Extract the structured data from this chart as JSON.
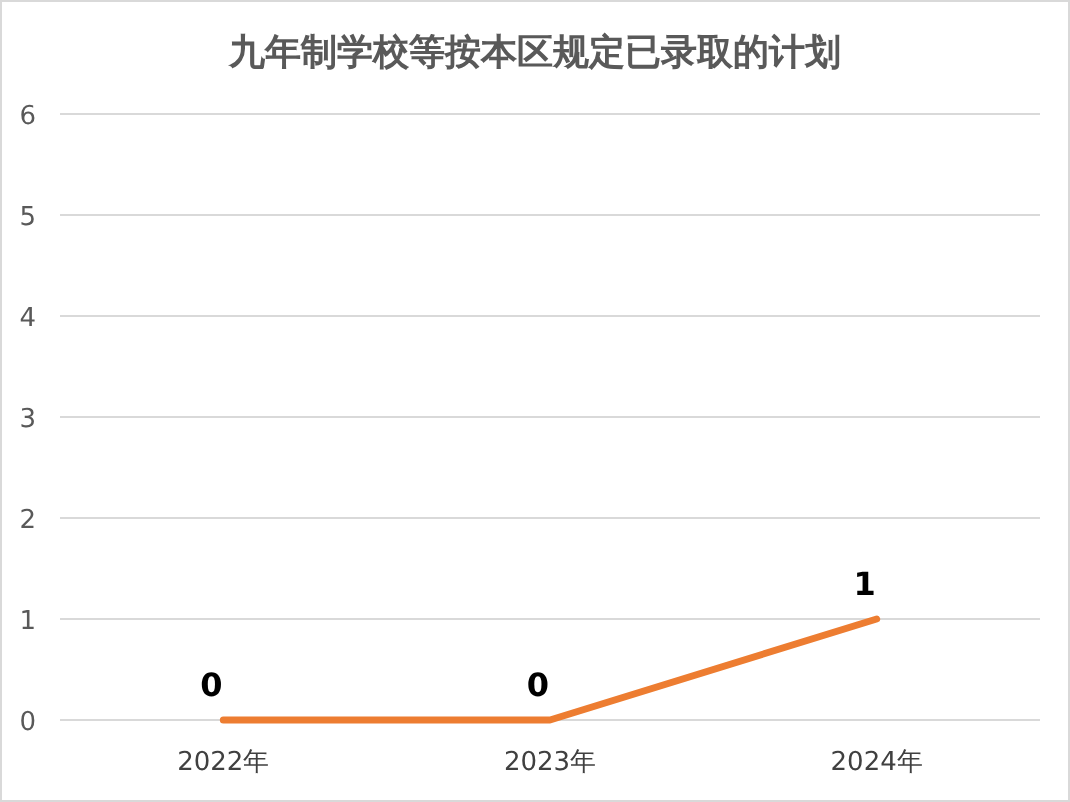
{
  "chart_data": {
    "type": "line",
    "title": "九年制学校等按本区规定已录取的计划",
    "categories": [
      "2022年",
      "2023年",
      "2024年"
    ],
    "series": [
      {
        "color": "#ed7d31",
        "values": [
          0,
          0,
          1
        ]
      }
    ],
    "ylim": [
      0,
      6
    ],
    "yticks": [
      0,
      1,
      2,
      3,
      4,
      5,
      6
    ],
    "grid": "y",
    "data_labels": true,
    "marker": "none",
    "line_style": "solid"
  }
}
